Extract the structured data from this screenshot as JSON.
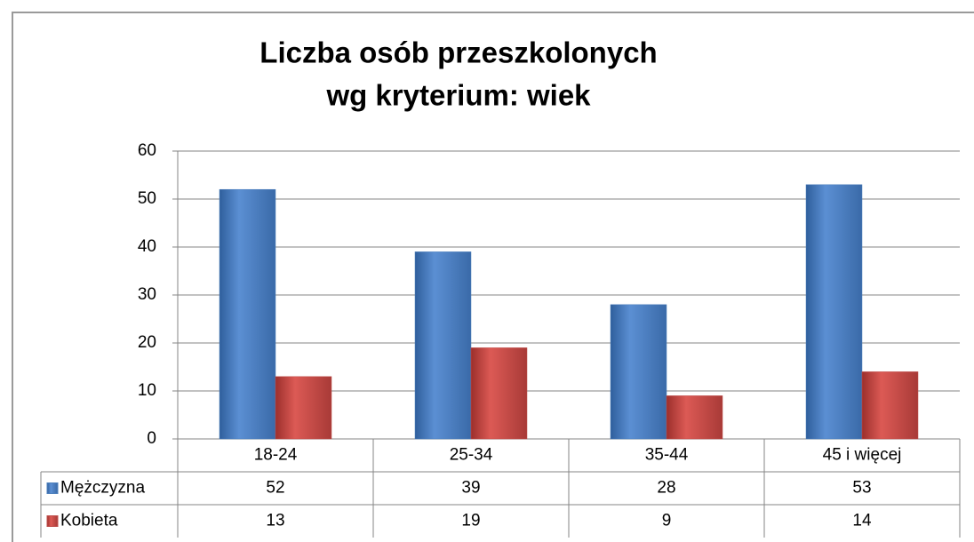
{
  "chart_data": {
    "type": "bar",
    "title": [
      "Liczba osób przeszkolonych",
      "wg kryterium: wiek"
    ],
    "categories": [
      "18-24",
      "25-34",
      "35-44",
      "45 i więcej"
    ],
    "series": [
      {
        "name": "Mężczyzna",
        "color": "#4f81bd",
        "values": [
          52,
          39,
          28,
          53
        ]
      },
      {
        "name": "Kobieta",
        "color": "#c0504d",
        "values": [
          13,
          19,
          9,
          14
        ]
      }
    ],
    "ylim": [
      0,
      60
    ],
    "yticks": [
      0,
      10,
      20,
      30,
      40,
      50,
      60
    ],
    "grid": true,
    "legend": "table"
  }
}
